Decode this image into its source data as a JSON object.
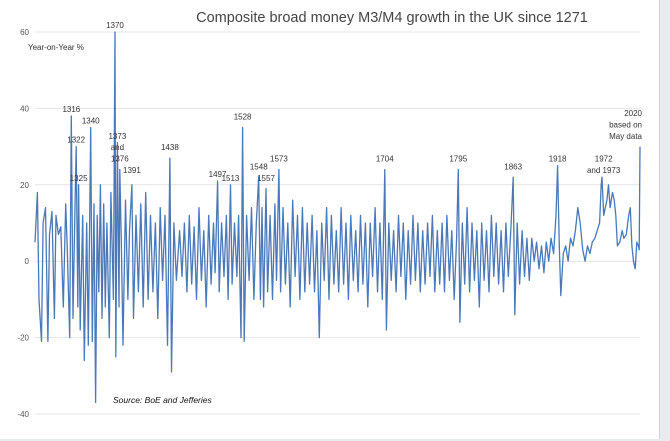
{
  "chart_data": {
    "type": "line",
    "title": "Composite broad money M3/M4 growth in the UK since 1271",
    "ylabel": "Year-on-Year  %",
    "source": "Source: BoE and Jefferies",
    "ylim": [
      -40,
      60
    ],
    "yticks": [
      "60",
      "40",
      "20",
      "0",
      "-20",
      "-40"
    ],
    "xlim": [
      1271,
      2020
    ],
    "grid": true,
    "legend": "none",
    "line_color": "#4a78b8",
    "series": [
      {
        "points": [
          [
            1271,
            5
          ],
          [
            1274,
            18
          ],
          [
            1276,
            -10
          ],
          [
            1279,
            -21
          ],
          [
            1281,
            10
          ],
          [
            1284,
            14
          ],
          [
            1287,
            -21
          ],
          [
            1289,
            7
          ],
          [
            1292,
            13
          ],
          [
            1295,
            -15
          ],
          [
            1297,
            12
          ],
          [
            1300,
            7
          ],
          [
            1303,
            9
          ],
          [
            1306,
            -12
          ],
          [
            1309,
            15
          ],
          [
            1311,
            3
          ],
          [
            1314,
            -20
          ],
          [
            1316,
            38
          ],
          [
            1318,
            -15
          ],
          [
            1320,
            9
          ],
          [
            1322,
            30
          ],
          [
            1324,
            -12
          ],
          [
            1325,
            20
          ],
          [
            1327,
            -18
          ],
          [
            1330,
            12
          ],
          [
            1332,
            -26
          ],
          [
            1335,
            10
          ],
          [
            1337,
            -22
          ],
          [
            1340,
            35
          ],
          [
            1342,
            -21
          ],
          [
            1344,
            15
          ],
          [
            1346,
            -37
          ],
          [
            1348,
            12
          ],
          [
            1350,
            -8
          ],
          [
            1352,
            20
          ],
          [
            1354,
            -15
          ],
          [
            1356,
            15
          ],
          [
            1358,
            -12
          ],
          [
            1360,
            10
          ],
          [
            1363,
            -20
          ],
          [
            1365,
            18
          ],
          [
            1368,
            -10
          ],
          [
            1370,
            60
          ],
          [
            1371,
            -25
          ],
          [
            1373,
            31
          ],
          [
            1375,
            -12
          ],
          [
            1376,
            24
          ],
          [
            1378,
            4
          ],
          [
            1380,
            -22
          ],
          [
            1383,
            16
          ],
          [
            1386,
            -10
          ],
          [
            1388,
            8
          ],
          [
            1391,
            20
          ],
          [
            1393,
            -15
          ],
          [
            1396,
            12
          ],
          [
            1399,
            -8
          ],
          [
            1402,
            15
          ],
          [
            1405,
            -12
          ],
          [
            1408,
            18
          ],
          [
            1411,
            -10
          ],
          [
            1414,
            12
          ],
          [
            1417,
            -8
          ],
          [
            1420,
            10
          ],
          [
            1423,
            -15
          ],
          [
            1426,
            14
          ],
          [
            1429,
            -5
          ],
          [
            1432,
            12
          ],
          [
            1435,
            -22
          ],
          [
            1438,
            27
          ],
          [
            1440,
            -29
          ],
          [
            1443,
            10
          ],
          [
            1446,
            -5
          ],
          [
            1450,
            8
          ],
          [
            1453,
            -4
          ],
          [
            1456,
            10
          ],
          [
            1459,
            -8
          ],
          [
            1462,
            12
          ],
          [
            1465,
            -6
          ],
          [
            1468,
            9
          ],
          [
            1471,
            -10
          ],
          [
            1474,
            14
          ],
          [
            1477,
            -5
          ],
          [
            1480,
            8
          ],
          [
            1483,
            -12
          ],
          [
            1486,
            12
          ],
          [
            1489,
            -6
          ],
          [
            1492,
            10
          ],
          [
            1494,
            -3
          ],
          [
            1497,
            21
          ],
          [
            1499,
            -8
          ],
          [
            1502,
            10
          ],
          [
            1505,
            -4
          ],
          [
            1508,
            12
          ],
          [
            1510,
            -10
          ],
          [
            1513,
            20
          ],
          [
            1515,
            -6
          ],
          [
            1518,
            10
          ],
          [
            1521,
            -4
          ],
          [
            1523,
            12
          ],
          [
            1526,
            -20
          ],
          [
            1528,
            35
          ],
          [
            1530,
            -21
          ],
          [
            1533,
            12
          ],
          [
            1536,
            -5
          ],
          [
            1539,
            14
          ],
          [
            1542,
            -10
          ],
          [
            1545,
            10
          ],
          [
            1548,
            22
          ],
          [
            1550,
            -10
          ],
          [
            1552,
            14
          ],
          [
            1554,
            -12
          ],
          [
            1557,
            19
          ],
          [
            1559,
            -8
          ],
          [
            1562,
            12
          ],
          [
            1565,
            -10
          ],
          [
            1568,
            15
          ],
          [
            1570,
            -5
          ],
          [
            1573,
            24
          ],
          [
            1575,
            -8
          ],
          [
            1578,
            14
          ],
          [
            1581,
            -6
          ],
          [
            1584,
            10
          ],
          [
            1587,
            -12
          ],
          [
            1590,
            16
          ],
          [
            1593,
            -4
          ],
          [
            1596,
            12
          ],
          [
            1599,
            -10
          ],
          [
            1602,
            14
          ],
          [
            1605,
            -8
          ],
          [
            1608,
            10
          ],
          [
            1611,
            -6
          ],
          [
            1614,
            12
          ],
          [
            1617,
            -8
          ],
          [
            1620,
            8
          ],
          [
            1623,
            -20
          ],
          [
            1626,
            10
          ],
          [
            1629,
            -5
          ],
          [
            1632,
            14
          ],
          [
            1635,
            -10
          ],
          [
            1638,
            12
          ],
          [
            1641,
            -6
          ],
          [
            1644,
            8
          ],
          [
            1647,
            -8
          ],
          [
            1650,
            14
          ],
          [
            1653,
            -6
          ],
          [
            1656,
            10
          ],
          [
            1659,
            -10
          ],
          [
            1662,
            12
          ],
          [
            1665,
            -5
          ],
          [
            1668,
            8
          ],
          [
            1671,
            -8
          ],
          [
            1674,
            12
          ],
          [
            1677,
            -6
          ],
          [
            1680,
            10
          ],
          [
            1683,
            -12
          ],
          [
            1686,
            10
          ],
          [
            1689,
            -4
          ],
          [
            1692,
            14
          ],
          [
            1695,
            -8
          ],
          [
            1698,
            10
          ],
          [
            1701,
            -10
          ],
          [
            1704,
            24
          ],
          [
            1706,
            -18
          ],
          [
            1709,
            10
          ],
          [
            1712,
            -5
          ],
          [
            1715,
            8
          ],
          [
            1718,
            -8
          ],
          [
            1721,
            12
          ],
          [
            1724,
            -4
          ],
          [
            1727,
            10
          ],
          [
            1730,
            -10
          ],
          [
            1733,
            8
          ],
          [
            1736,
            -6
          ],
          [
            1739,
            12
          ],
          [
            1742,
            -5
          ],
          [
            1745,
            10
          ],
          [
            1748,
            -8
          ],
          [
            1751,
            8
          ],
          [
            1754,
            -6
          ],
          [
            1757,
            10
          ],
          [
            1760,
            -4
          ],
          [
            1763,
            12
          ],
          [
            1766,
            -8
          ],
          [
            1769,
            8
          ],
          [
            1772,
            -6
          ],
          [
            1775,
            10
          ],
          [
            1778,
            -8
          ],
          [
            1781,
            12
          ],
          [
            1784,
            -5
          ],
          [
            1787,
            8
          ],
          [
            1790,
            -10
          ],
          [
            1793,
            6
          ],
          [
            1795,
            24
          ],
          [
            1797,
            -16
          ],
          [
            1800,
            10
          ],
          [
            1803,
            -6
          ],
          [
            1806,
            14
          ],
          [
            1809,
            -8
          ],
          [
            1812,
            10
          ],
          [
            1815,
            -5
          ],
          [
            1818,
            8
          ],
          [
            1821,
            -12
          ],
          [
            1824,
            10
          ],
          [
            1827,
            -5
          ],
          [
            1830,
            8
          ],
          [
            1833,
            -8
          ],
          [
            1836,
            12
          ],
          [
            1839,
            -4
          ],
          [
            1842,
            10
          ],
          [
            1845,
            -6
          ],
          [
            1848,
            8
          ],
          [
            1851,
            -8
          ],
          [
            1854,
            10
          ],
          [
            1857,
            -4
          ],
          [
            1860,
            8
          ],
          [
            1863,
            22
          ],
          [
            1865,
            -14
          ],
          [
            1868,
            10
          ],
          [
            1871,
            -6
          ],
          [
            1874,
            8
          ],
          [
            1877,
            -4
          ],
          [
            1880,
            6
          ],
          [
            1883,
            -5
          ],
          [
            1886,
            6
          ],
          [
            1889,
            0
          ],
          [
            1892,
            5
          ],
          [
            1895,
            -2
          ],
          [
            1898,
            4
          ],
          [
            1901,
            -3
          ],
          [
            1904,
            5
          ],
          [
            1907,
            0
          ],
          [
            1910,
            6
          ],
          [
            1913,
            2
          ],
          [
            1916,
            12
          ],
          [
            1918,
            25
          ],
          [
            1920,
            5
          ],
          [
            1922,
            -9
          ],
          [
            1925,
            2
          ],
          [
            1928,
            4
          ],
          [
            1931,
            0
          ],
          [
            1934,
            6
          ],
          [
            1937,
            4
          ],
          [
            1940,
            8
          ],
          [
            1943,
            14
          ],
          [
            1946,
            10
          ],
          [
            1949,
            3
          ],
          [
            1952,
            0
          ],
          [
            1955,
            4
          ],
          [
            1958,
            2
          ],
          [
            1961,
            5
          ],
          [
            1964,
            6
          ],
          [
            1967,
            8
          ],
          [
            1970,
            10
          ],
          [
            1972,
            20
          ],
          [
            1973,
            22
          ],
          [
            1975,
            12
          ],
          [
            1977,
            14
          ],
          [
            1979,
            16
          ],
          [
            1981,
            20
          ],
          [
            1983,
            14
          ],
          [
            1986,
            18
          ],
          [
            1988,
            16
          ],
          [
            1990,
            12
          ],
          [
            1992,
            4
          ],
          [
            1995,
            5
          ],
          [
            1998,
            8
          ],
          [
            2000,
            6
          ],
          [
            2003,
            7
          ],
          [
            2006,
            12
          ],
          [
            2008,
            14
          ],
          [
            2010,
            4
          ],
          [
            2012,
            0
          ],
          [
            2014,
            -2
          ],
          [
            2016,
            5
          ],
          [
            2018,
            4
          ],
          [
            2019,
            3
          ],
          [
            2020,
            30
          ]
        ]
      }
    ],
    "annotations": [
      {
        "text": "1316",
        "x": 1316,
        "y": 38
      },
      {
        "text": "1322",
        "x": 1322,
        "y": 30
      },
      {
        "text": "1325",
        "x": 1325,
        "y": 20
      },
      {
        "text": "1340",
        "x": 1340,
        "y": 35
      },
      {
        "text": "1370",
        "x": 1370,
        "y": 60
      },
      {
        "text": "1373",
        "x": 1373,
        "y": 31
      },
      {
        "text": "and",
        "x": 1373,
        "y": 28
      },
      {
        "text": "1376",
        "x": 1376,
        "y": 25
      },
      {
        "text": "1391",
        "x": 1391,
        "y": 22
      },
      {
        "text": "1438",
        "x": 1438,
        "y": 28
      },
      {
        "text": "1497",
        "x": 1497,
        "y": 21
      },
      {
        "text": "1513",
        "x": 1513,
        "y": 20
      },
      {
        "text": "1528",
        "x": 1528,
        "y": 36
      },
      {
        "text": "1548",
        "x": 1548,
        "y": 23
      },
      {
        "text": "1557",
        "x": 1557,
        "y": 20
      },
      {
        "text": "1573",
        "x": 1573,
        "y": 25
      },
      {
        "text": "1704",
        "x": 1704,
        "y": 25
      },
      {
        "text": "1795",
        "x": 1795,
        "y": 25
      },
      {
        "text": "1863",
        "x": 1863,
        "y": 23
      },
      {
        "text": "1918",
        "x": 1918,
        "y": 25
      },
      {
        "text": "1972",
        "x": 1975,
        "y": 25
      },
      {
        "text": "and 1973",
        "x": 1975,
        "y": 22
      },
      {
        "text": "2020",
        "x": 2020,
        "y": 37
      },
      {
        "text": "based on",
        "x": 2020,
        "y": 34
      },
      {
        "text": "May data",
        "x": 2020,
        "y": 31
      }
    ]
  }
}
